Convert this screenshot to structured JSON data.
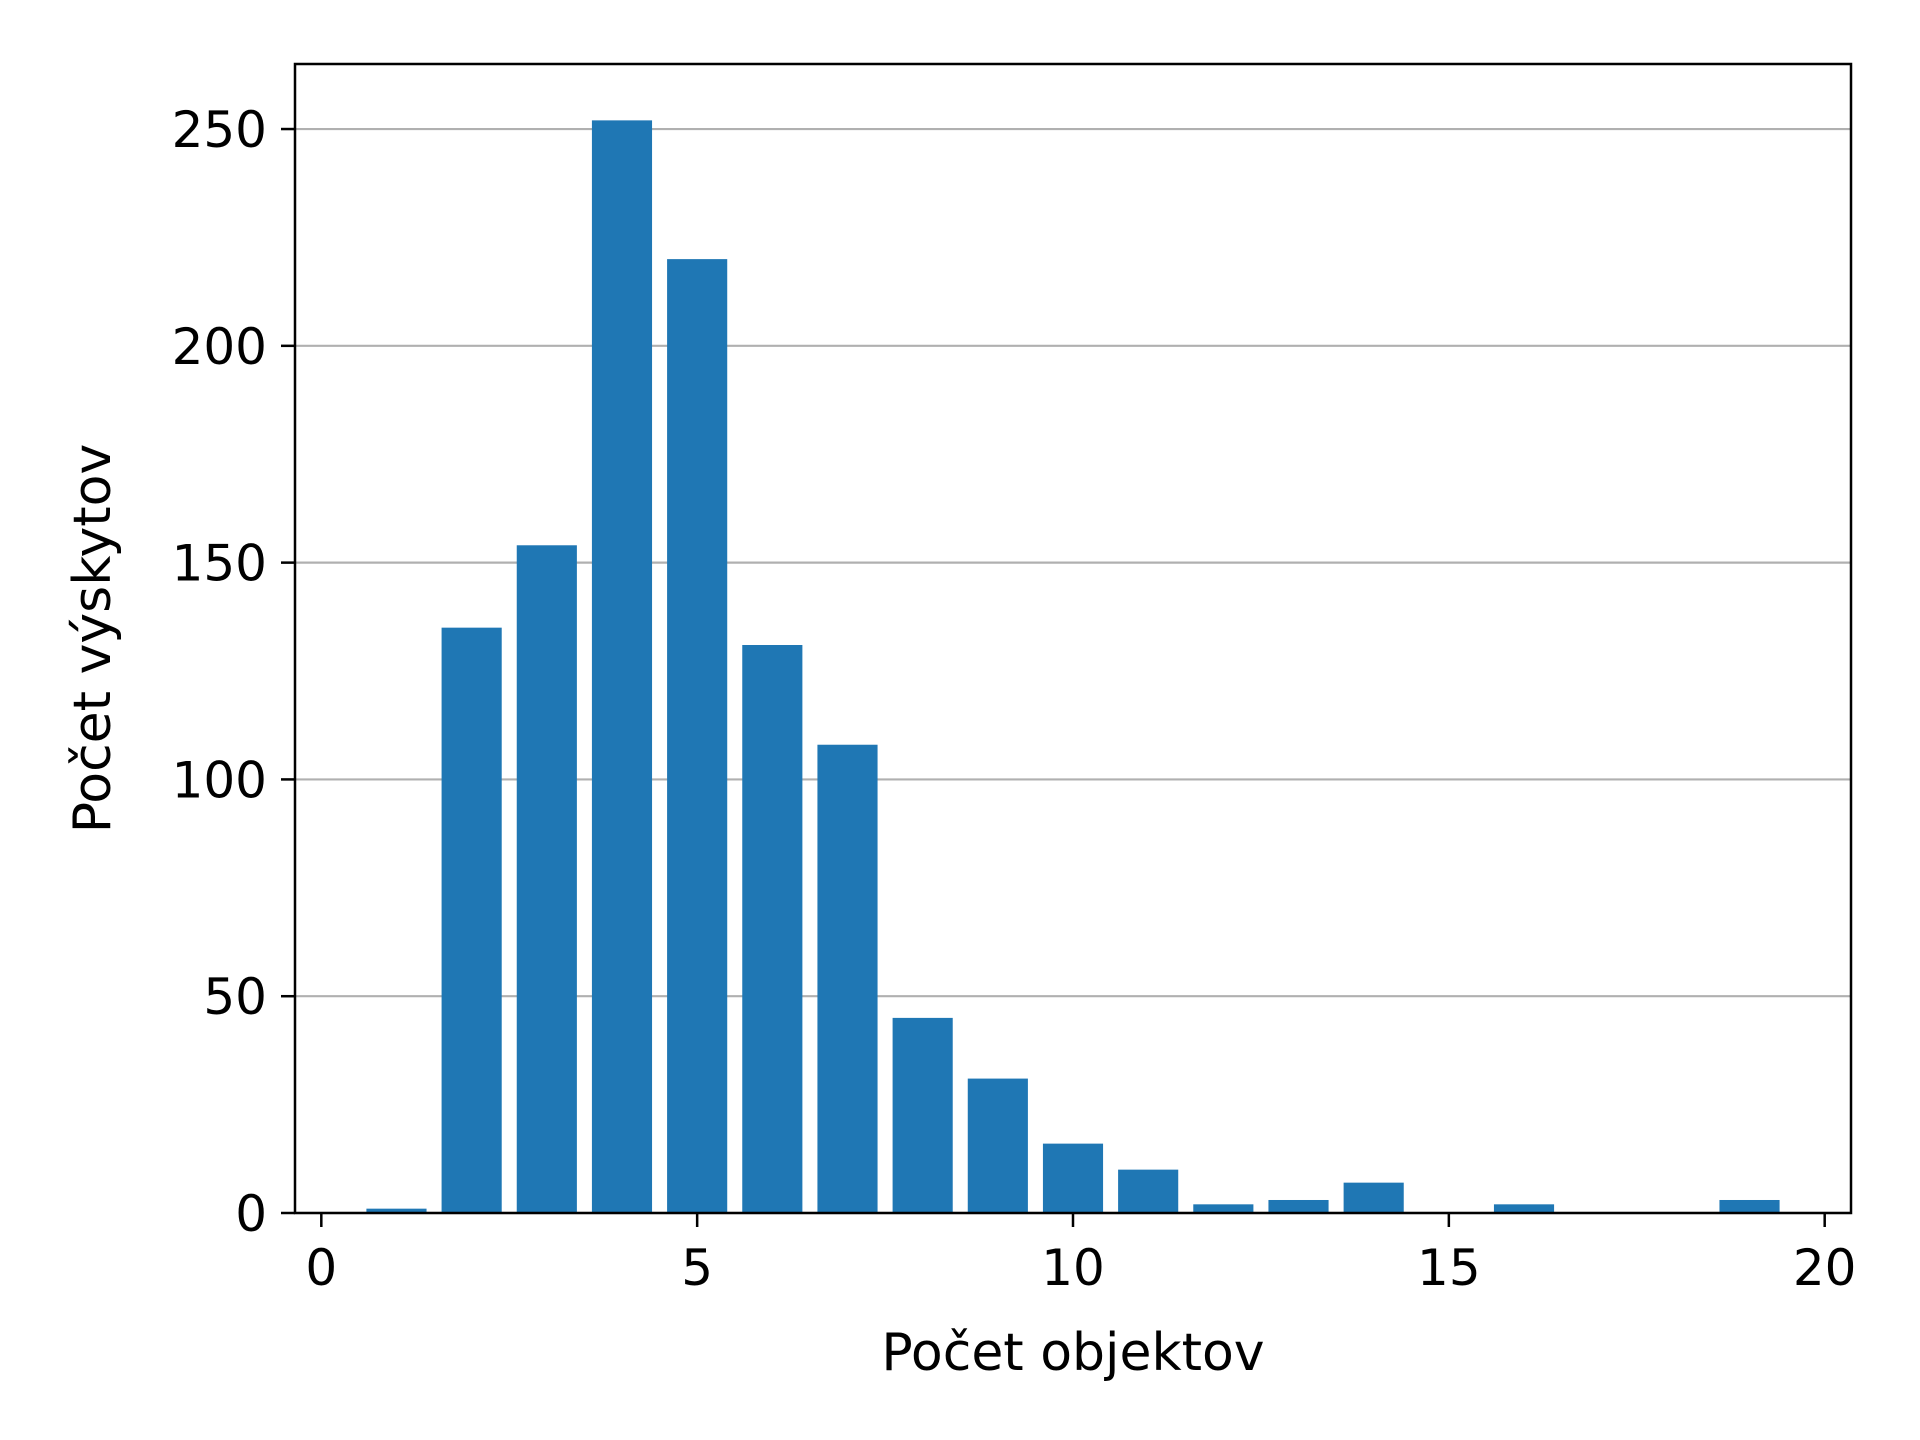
{
  "chart_data": {
    "type": "bar",
    "title": "",
    "xlabel": "Počet objektov",
    "ylabel": "Počet výskytov",
    "x": [
      1,
      2,
      3,
      4,
      5,
      6,
      7,
      8,
      9,
      10,
      11,
      12,
      13,
      14,
      16,
      19
    ],
    "values": [
      1,
      135,
      154,
      252,
      220,
      131,
      108,
      45,
      31,
      16,
      10,
      2,
      3,
      7,
      2,
      3
    ],
    "xlim": [
      -0.35,
      20.35
    ],
    "ylim": [
      0,
      265
    ],
    "x_ticks": [
      0,
      5,
      10,
      15,
      20
    ],
    "y_ticks": [
      0,
      50,
      100,
      150,
      200,
      250
    ],
    "bar_width": 0.8,
    "grid": "y-major",
    "legend": "none",
    "colors": {
      "bar": "#1f77b4",
      "grid": "#b0b0b0",
      "axis": "#000000",
      "background": "#ffffff"
    }
  }
}
